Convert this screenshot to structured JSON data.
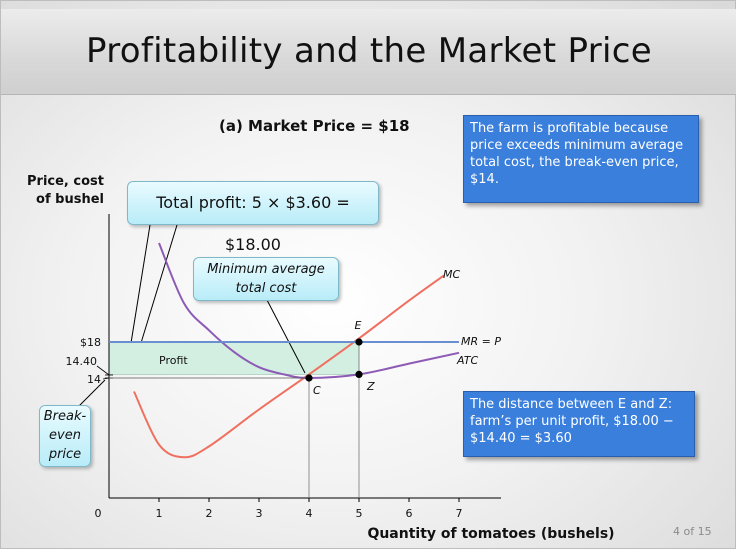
{
  "slide": {
    "title": "Profitability and the Market Price",
    "subtitle": "(a)  Market Price = $18",
    "page_number": "4 of 15"
  },
  "info_boxes": {
    "profitable": "The farm is profitable because price exceeds minimum average total cost, the break-even price, $14.",
    "distance": "The distance between E and Z: farm’s per unit profit, $18.00 − $14.40 = $3.60"
  },
  "callouts": {
    "total_profit": "Total profit: 5 × $3.60 = $18.00",
    "min_atc": "Minimum average total cost",
    "break_even": "Break-even price"
  },
  "colors": {
    "mc_curve": "#f07060",
    "atc_curve": "#8d5bb5",
    "mr_line": "#6a8fd0",
    "profit_fill": "#d3efe2",
    "info_box": "#3a7fdc"
  },
  "chart_data": {
    "type": "line",
    "xlabel": "Quantity of tomatoes (bushels)",
    "ylabel": "Price, cost of bushel",
    "ylabel_lines": [
      "Price, cost",
      "of bushel"
    ],
    "x_ticks": [
      "0",
      "1",
      "2",
      "3",
      "4",
      "5",
      "6",
      "7"
    ],
    "y_tick_labels": [
      "$18",
      "14.40",
      "14"
    ],
    "xlim": [
      0,
      7.8
    ],
    "series": [
      {
        "name": "MC",
        "x": [
          0.5,
          1,
          1.5,
          2,
          3,
          4,
          5,
          6,
          6.7
        ],
        "y": [
          12.5,
          6.6,
          5.2,
          6.4,
          10.5,
          14.4,
          18.4,
          22.6,
          25.4
        ]
      },
      {
        "name": "ATC",
        "x": [
          1,
          1.5,
          2,
          2.5,
          3,
          3.5,
          4,
          5,
          6,
          7
        ],
        "y": [
          29.0,
          22.3,
          19.3,
          16.9,
          15.2,
          14.4,
          14.0,
          14.4,
          15.6,
          16.8
        ]
      },
      {
        "name": "MR = P",
        "x": [
          0,
          7.0
        ],
        "y": [
          18,
          18
        ]
      }
    ],
    "points": [
      {
        "label": "E",
        "x": 5,
        "y": 18
      },
      {
        "label": "C",
        "x": 4,
        "y": 14
      },
      {
        "label": "Z",
        "x": 5,
        "y": 14.4
      }
    ],
    "shaded_region": {
      "label": "Profit",
      "x": [
        0,
        5
      ],
      "y": [
        14.4,
        18
      ]
    },
    "annotations": [
      "Profit",
      "E",
      "C",
      "Z",
      "MC",
      "MR = P",
      "ATC"
    ]
  }
}
